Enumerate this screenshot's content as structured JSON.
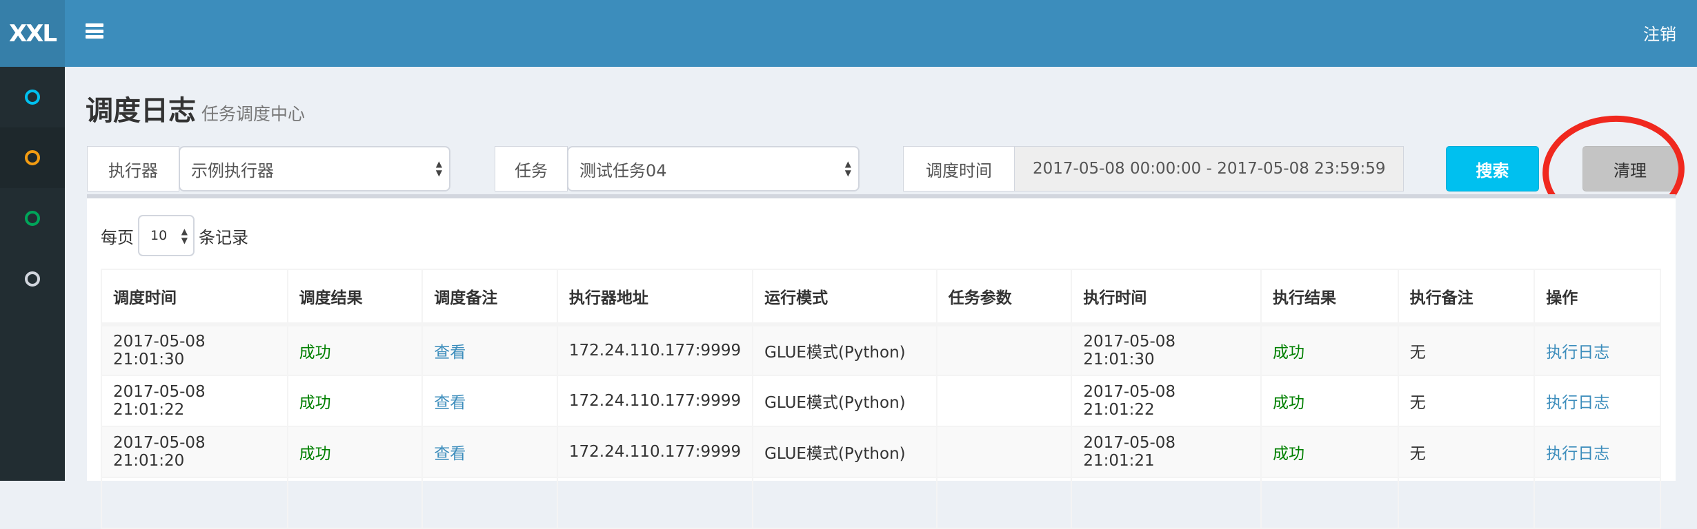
{
  "app": {
    "logo": "XXL",
    "logout": "注销"
  },
  "sidebar": {
    "items": [
      {
        "icon": "circle-icon",
        "color": "#00c0ef"
      },
      {
        "icon": "circle-icon",
        "color": "#f39c12",
        "active": true
      },
      {
        "icon": "circle-icon",
        "color": "#00a65a"
      },
      {
        "icon": "circle-icon",
        "color": "#d2d6de"
      }
    ]
  },
  "page": {
    "title": "调度日志",
    "subtitle": "任务调度中心"
  },
  "filters": {
    "executor_label": "执行器",
    "executor_value": "示例执行器",
    "task_label": "任务",
    "task_value": "测试任务04",
    "time_label": "调度时间",
    "time_value": "2017-05-08 00:00:00 - 2017-05-08 23:59:59",
    "search": "搜索",
    "clean": "清理"
  },
  "length": {
    "prefix": "每页",
    "value": "10",
    "suffix": "条记录"
  },
  "table": {
    "headers": [
      "调度时间",
      "调度结果",
      "调度备注",
      "执行器地址",
      "运行模式",
      "任务参数",
      "执行时间",
      "执行结果",
      "执行备注",
      "操作"
    ],
    "rows": [
      [
        "2017-05-08 21:01:30",
        "成功",
        "查看",
        "172.24.110.177:9999",
        "GLUE模式(Python)",
        "",
        "2017-05-08 21:01:30",
        "成功",
        "无",
        "执行日志"
      ],
      [
        "2017-05-08 21:01:22",
        "成功",
        "查看",
        "172.24.110.177:9999",
        "GLUE模式(Python)",
        "",
        "2017-05-08 21:01:22",
        "成功",
        "无",
        "执行日志"
      ],
      [
        "2017-05-08 21:01:20",
        "成功",
        "查看",
        "172.24.110.177:9999",
        "GLUE模式(Python)",
        "",
        "2017-05-08 21:01:21",
        "成功",
        "无",
        "执行日志"
      ],
      [
        "",
        "",
        "",
        "",
        "",
        "",
        "",
        "",
        "",
        ""
      ]
    ]
  },
  "colors": {
    "header": "#3c8dbc",
    "sidebar": "#222d32",
    "success": "#008000",
    "link": "#3c8dbc",
    "search": "#00c0ef",
    "annotation": "#f0281e"
  }
}
